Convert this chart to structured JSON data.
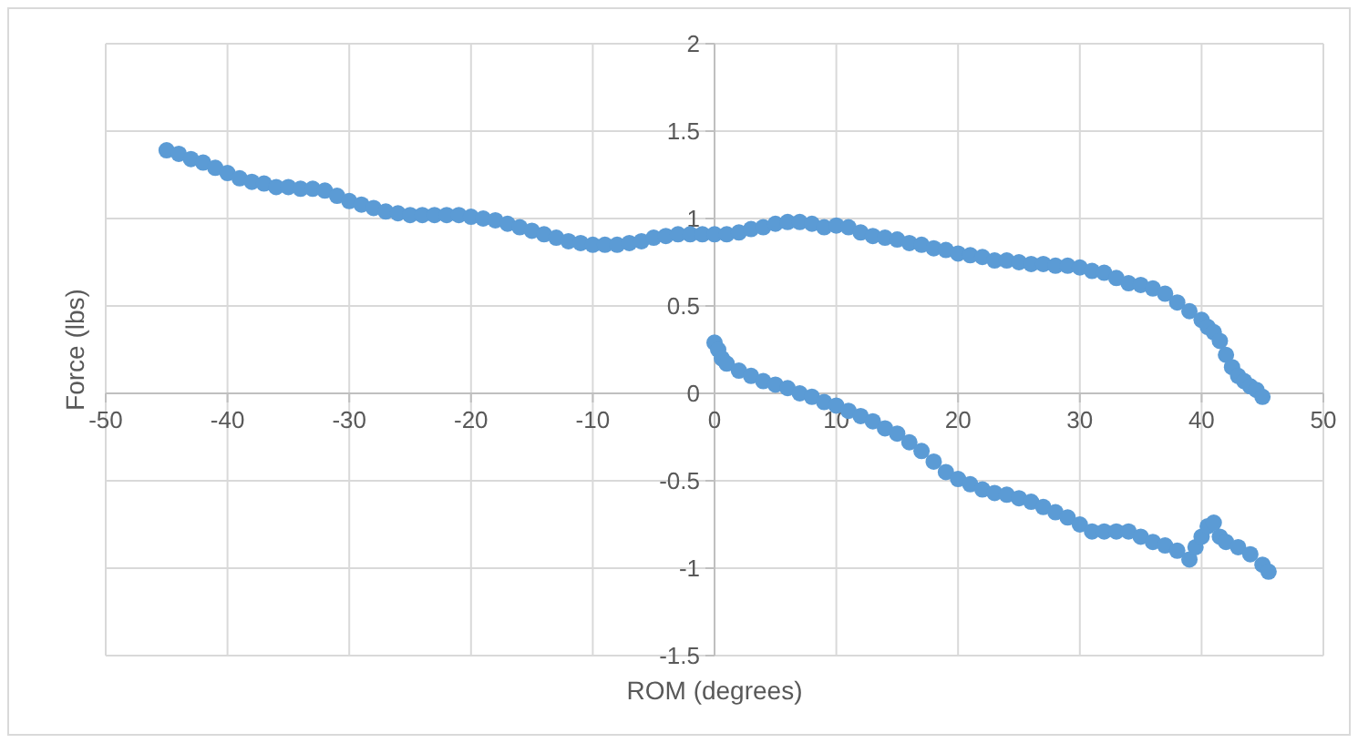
{
  "chart_data": {
    "type": "scatter",
    "xlabel": "ROM (degrees)",
    "ylabel": "Force (lbs)",
    "xlim": [
      -50,
      50
    ],
    "xticks": [
      -50,
      -40,
      -30,
      -20,
      -10,
      0,
      10,
      20,
      30,
      40,
      50
    ],
    "ylim": [
      -1.5,
      2
    ],
    "yticks": [
      -1.5,
      -1,
      -0.5,
      0,
      0.5,
      1,
      1.5,
      2
    ],
    "grid": true,
    "marker": "circle",
    "series": [
      {
        "color": "#5b9bd5",
        "x": [
          -45,
          -44,
          -43,
          -42,
          -41,
          -40,
          -39,
          -38,
          -37,
          -36,
          -35,
          -34,
          -33,
          -32,
          -31,
          -30,
          -29,
          -28,
          -27,
          -26,
          -25,
          -24,
          -23,
          -22,
          -21,
          -20,
          -19,
          -18,
          -17,
          -16,
          -15,
          -14,
          -13,
          -12,
          -11,
          -10,
          -9,
          -8,
          -7,
          -6,
          -5,
          -4,
          -3,
          -2,
          -1,
          0,
          1,
          2,
          3,
          4,
          5,
          6,
          7,
          8,
          9,
          10,
          11,
          12,
          13,
          14,
          15,
          16,
          17,
          18,
          19,
          20,
          21,
          22,
          23,
          24,
          25,
          26,
          27,
          28,
          29,
          30,
          31,
          32,
          33,
          34,
          35,
          36,
          37,
          38,
          39,
          40,
          40.5,
          41,
          41.5,
          42,
          42.5,
          43,
          43.5,
          44,
          44.5,
          45,
          0,
          0.3,
          0.6,
          1,
          2,
          3,
          4,
          5,
          6,
          7,
          8,
          9,
          10,
          11,
          12,
          13,
          14,
          15,
          16,
          17,
          18,
          19,
          20,
          21,
          22,
          23,
          24,
          25,
          26,
          27,
          28,
          29,
          30,
          31,
          32,
          33,
          34,
          35,
          36,
          37,
          38,
          39,
          39.5,
          40,
          40.5,
          41,
          41.5,
          42,
          43,
          44,
          45,
          45.5
        ],
        "values": [
          1.39,
          1.37,
          1.34,
          1.32,
          1.29,
          1.26,
          1.23,
          1.21,
          1.2,
          1.18,
          1.18,
          1.17,
          1.17,
          1.16,
          1.13,
          1.1,
          1.08,
          1.06,
          1.04,
          1.03,
          1.02,
          1.02,
          1.02,
          1.02,
          1.02,
          1.01,
          1.0,
          0.99,
          0.97,
          0.95,
          0.93,
          0.91,
          0.89,
          0.87,
          0.86,
          0.85,
          0.85,
          0.85,
          0.86,
          0.87,
          0.89,
          0.9,
          0.91,
          0.91,
          0.91,
          0.91,
          0.91,
          0.92,
          0.94,
          0.95,
          0.97,
          0.98,
          0.98,
          0.97,
          0.95,
          0.96,
          0.95,
          0.92,
          0.9,
          0.89,
          0.88,
          0.86,
          0.85,
          0.83,
          0.82,
          0.8,
          0.79,
          0.78,
          0.76,
          0.76,
          0.75,
          0.74,
          0.74,
          0.73,
          0.73,
          0.72,
          0.7,
          0.69,
          0.66,
          0.63,
          0.62,
          0.6,
          0.57,
          0.52,
          0.47,
          0.42,
          0.38,
          0.35,
          0.3,
          0.22,
          0.15,
          0.1,
          0.07,
          0.04,
          0.02,
          -0.02,
          0.29,
          0.25,
          0.2,
          0.17,
          0.13,
          0.1,
          0.07,
          0.05,
          0.03,
          0.0,
          -0.02,
          -0.05,
          -0.07,
          -0.1,
          -0.13,
          -0.16,
          -0.2,
          -0.23,
          -0.28,
          -0.33,
          -0.39,
          -0.45,
          -0.49,
          -0.52,
          -0.55,
          -0.57,
          -0.58,
          -0.6,
          -0.62,
          -0.65,
          -0.68,
          -0.71,
          -0.75,
          -0.79,
          -0.79,
          -0.79,
          -0.79,
          -0.82,
          -0.85,
          -0.87,
          -0.9,
          -0.95,
          -0.88,
          -0.82,
          -0.76,
          -0.74,
          -0.82,
          -0.85,
          -0.88,
          -0.92,
          -0.98,
          -1.02
        ]
      }
    ]
  }
}
